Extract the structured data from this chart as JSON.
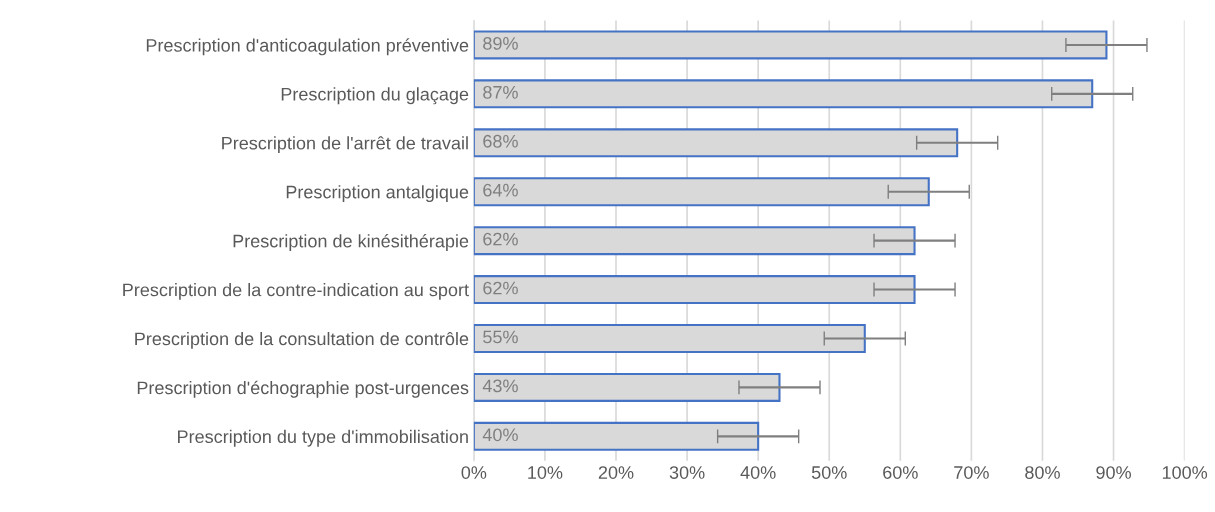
{
  "chart_data": {
    "type": "bar",
    "orientation": "horizontal",
    "categories": [
      "Prescription d'anticoagulation préventive",
      "Prescription du glaçage",
      "Prescription de l'arrêt de travail",
      "Prescription antalgique",
      "Prescription de kinésithérapie",
      "Prescription de la contre-indication au sport",
      "Prescription de la consultation de contrôle",
      "Prescription d'échographie post-urgences",
      "Prescription du type d'immobilisation"
    ],
    "values": [
      89,
      87,
      68,
      64,
      62,
      62,
      55,
      43,
      40
    ],
    "errors": [
      5.7,
      5.7,
      5.7,
      5.7,
      5.7,
      5.7,
      5.7,
      5.7,
      5.7
    ],
    "value_labels": [
      "89%",
      "87%",
      "68%",
      "64%",
      "62%",
      "62%",
      "55%",
      "43%",
      "40%"
    ],
    "color": "#d9d9d9",
    "xlim": [
      0,
      100
    ],
    "xticks": [
      {
        "value": 0,
        "label": "0%"
      },
      {
        "value": 10,
        "label": "10%"
      },
      {
        "value": 20,
        "label": "20%"
      },
      {
        "value": 30,
        "label": "30%"
      },
      {
        "value": 40,
        "label": "40%"
      },
      {
        "value": 50,
        "label": "50%"
      },
      {
        "value": 60,
        "label": "60%"
      },
      {
        "value": 70,
        "label": "70%"
      },
      {
        "value": 80,
        "label": "80%"
      },
      {
        "value": 90,
        "label": "90%"
      },
      {
        "value": 100,
        "label": "100%"
      }
    ],
    "grid": "x",
    "legend": false
  }
}
